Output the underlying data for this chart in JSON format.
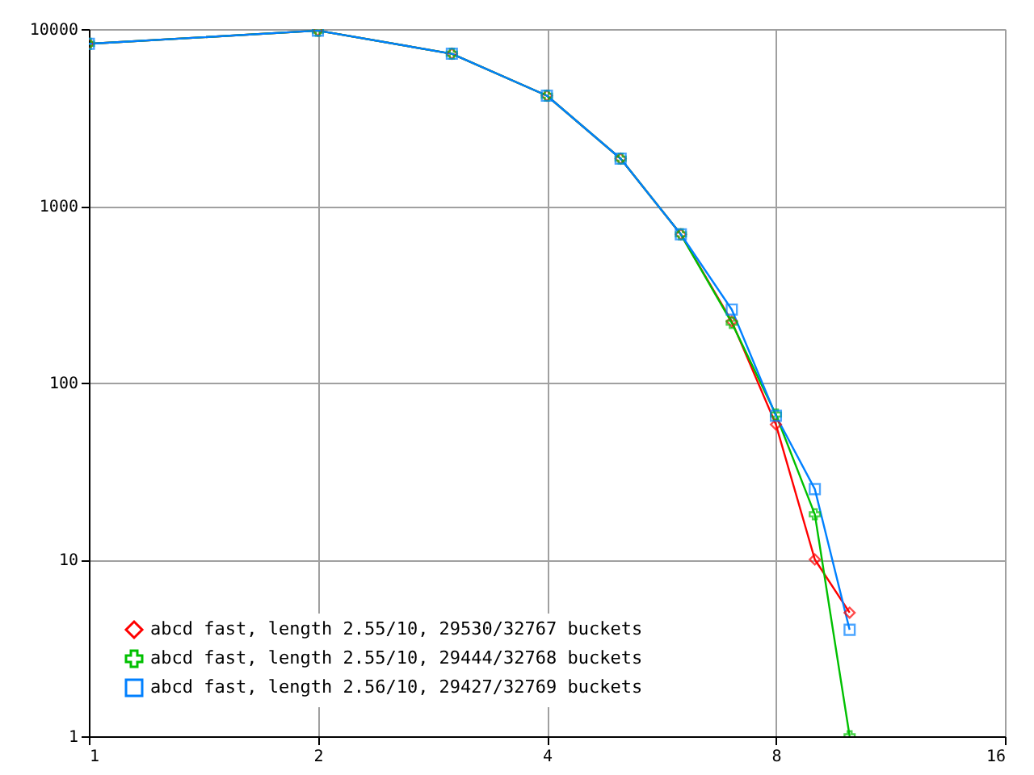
{
  "chart_data": {
    "type": "line",
    "log": "xy",
    "x": [
      1,
      2,
      3,
      4,
      5,
      6,
      7,
      8,
      9,
      10
    ],
    "series": [
      {
        "name": "abcd fast, length 2.55/10, 29530/32767 buckets",
        "color": "#ff0000",
        "marker": "diamond",
        "values": [
          8250,
          9800,
          7250,
          4200,
          1850,
          690,
          222,
          58,
          10,
          5
        ]
      },
      {
        "name": "abcd fast, length 2.55/10, 29444/32768 buckets",
        "color": "#00c000",
        "marker": "cross",
        "values": [
          8250,
          9800,
          7250,
          4200,
          1850,
          690,
          218,
          66,
          18,
          1
        ]
      },
      {
        "name": "abcd fast, length 2.56/10, 29427/32769 buckets",
        "color": "#0080ff",
        "marker": "square",
        "values": [
          8250,
          9800,
          7250,
          4200,
          1850,
          690,
          259,
          65,
          25,
          4
        ]
      }
    ],
    "xlim": [
      1,
      16
    ],
    "xticks": [
      1,
      2,
      4,
      8,
      16
    ],
    "ylim": [
      1,
      10000
    ],
    "yticks": [
      1,
      10,
      100,
      1000,
      10000
    ],
    "grid": true,
    "legend": "bottom left",
    "line_style": "solid"
  }
}
